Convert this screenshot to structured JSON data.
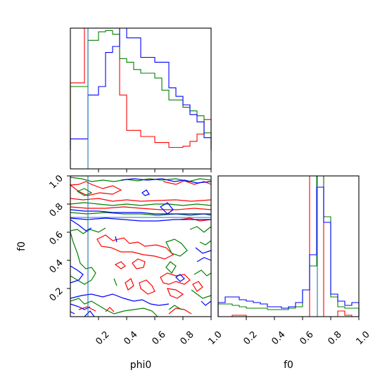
{
  "chart_data": {
    "type": "corner",
    "parameters": [
      "phi0",
      "f0"
    ],
    "axis_labels": {
      "x_phi0": "phi0",
      "x_f0": "f0",
      "y_f0": "f0"
    },
    "phi0_range": [
      0,
      1
    ],
    "f0_range": [
      0,
      1
    ],
    "ticks": [
      0.2,
      0.4,
      0.6,
      0.8,
      1.0
    ],
    "tick_labels": [
      "0.2",
      "0.4",
      "0.6",
      "0.8",
      "1.0"
    ],
    "series_colors": {
      "red": "#ff0000",
      "green": "#008000",
      "blue": "#0000ff",
      "truth": "#1f77b4"
    },
    "truth": {
      "phi0": 0.125,
      "f0": 0.705
    },
    "phi0_bin_edges": [
      0,
      0.1,
      0.125,
      0.2,
      0.25,
      0.3,
      0.35,
      0.4,
      0.45,
      0.5,
      0.55,
      0.6,
      0.65,
      0.7,
      0.75,
      0.8,
      0.85,
      0.9,
      0.95,
      1.0
    ],
    "phi0_histograms": [
      {
        "series": "red",
        "density": [
          0.55,
          1.0,
          1.0,
          1.0,
          1.0,
          1.0,
          0.45,
          0.16,
          0.16,
          0.11,
          0.11,
          0.06,
          0.06,
          0.02,
          0.02,
          0.03,
          0.07,
          0.13,
          0.25
        ]
      },
      {
        "series": "green",
        "density": [
          0.52,
          0.52,
          0.9,
          0.97,
          0.98,
          0.95,
          0.75,
          0.72,
          0.66,
          0.63,
          0.63,
          0.59,
          0.49,
          0.41,
          0.41,
          0.35,
          0.32,
          0.28,
          0.14
        ]
      },
      {
        "series": "blue",
        "density": [
          0.09,
          0.09,
          0.45,
          0.52,
          0.8,
          0.85,
          1.0,
          0.92,
          0.92,
          0.76,
          0.76,
          0.72,
          0.72,
          0.51,
          0.44,
          0.37,
          0.29,
          0.23,
          0.1
        ]
      }
    ],
    "f0_bin_edges": [
      0,
      0.05,
      0.1,
      0.15,
      0.2,
      0.25,
      0.3,
      0.35,
      0.4,
      0.45,
      0.5,
      0.55,
      0.6,
      0.65,
      0.7,
      0.75,
      0.8,
      0.85,
      0.9,
      0.95,
      1.0
    ],
    "f0_histograms": [
      {
        "series": "red",
        "density": [
          0,
          0,
          0.01,
          0.01,
          0.0,
          0.0,
          0.0,
          0.0,
          0.0,
          0.0,
          0.0,
          0.0,
          0.0,
          1.0,
          1.0,
          0.0,
          0.0,
          0.04,
          0.01,
          0.0
        ]
      },
      {
        "series": "green",
        "density": [
          0.09,
          0.09,
          0.08,
          0.07,
          0.06,
          0.06,
          0.06,
          0.05,
          0.05,
          0.05,
          0.06,
          0.07,
          0.19,
          0.36,
          1.0,
          0.71,
          0.14,
          0.07,
          0.06,
          0.06
        ]
      },
      {
        "series": "blue",
        "density": [
          0.1,
          0.14,
          0.14,
          0.12,
          0.11,
          0.1,
          0.09,
          0.07,
          0.07,
          0.06,
          0.07,
          0.1,
          0.19,
          0.44,
          0.92,
          0.67,
          0.16,
          0.11,
          0.08,
          0.1
        ]
      }
    ]
  }
}
